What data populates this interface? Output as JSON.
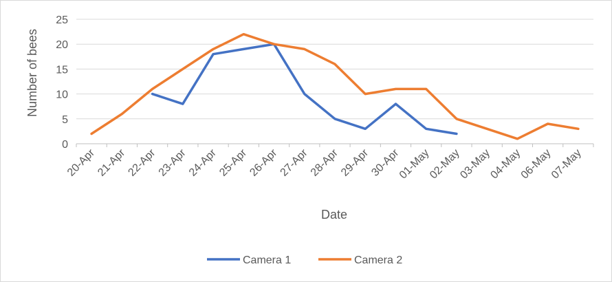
{
  "chart_data": {
    "type": "line",
    "title": "",
    "xlabel": "Date",
    "ylabel": "Number of bees",
    "ylim": [
      0,
      25
    ],
    "yticks": [
      0,
      5,
      10,
      15,
      20,
      25
    ],
    "grid": "horizontal",
    "legend_position": "bottom",
    "categories": [
      "20-Apr",
      "21-Apr",
      "22-Apr",
      "23-Apr",
      "24-Apr",
      "25-Apr",
      "26-Apr",
      "27-Apr",
      "28-Apr",
      "29-Apr",
      "30-Apr",
      "01-May",
      "02-May",
      "03-May",
      "04-May",
      "06-May",
      "07-May"
    ],
    "series": [
      {
        "name": "Camera 1",
        "color": "#4472C4",
        "values": [
          null,
          null,
          10,
          8,
          18,
          19,
          20,
          10,
          5,
          3,
          8,
          3,
          2,
          null,
          null,
          null,
          null
        ]
      },
      {
        "name": "Camera 2",
        "color": "#ED7D31",
        "values": [
          2,
          6,
          11,
          15,
          19,
          22,
          20,
          19,
          16,
          10,
          11,
          11,
          5,
          3,
          1,
          4,
          3
        ]
      }
    ]
  }
}
